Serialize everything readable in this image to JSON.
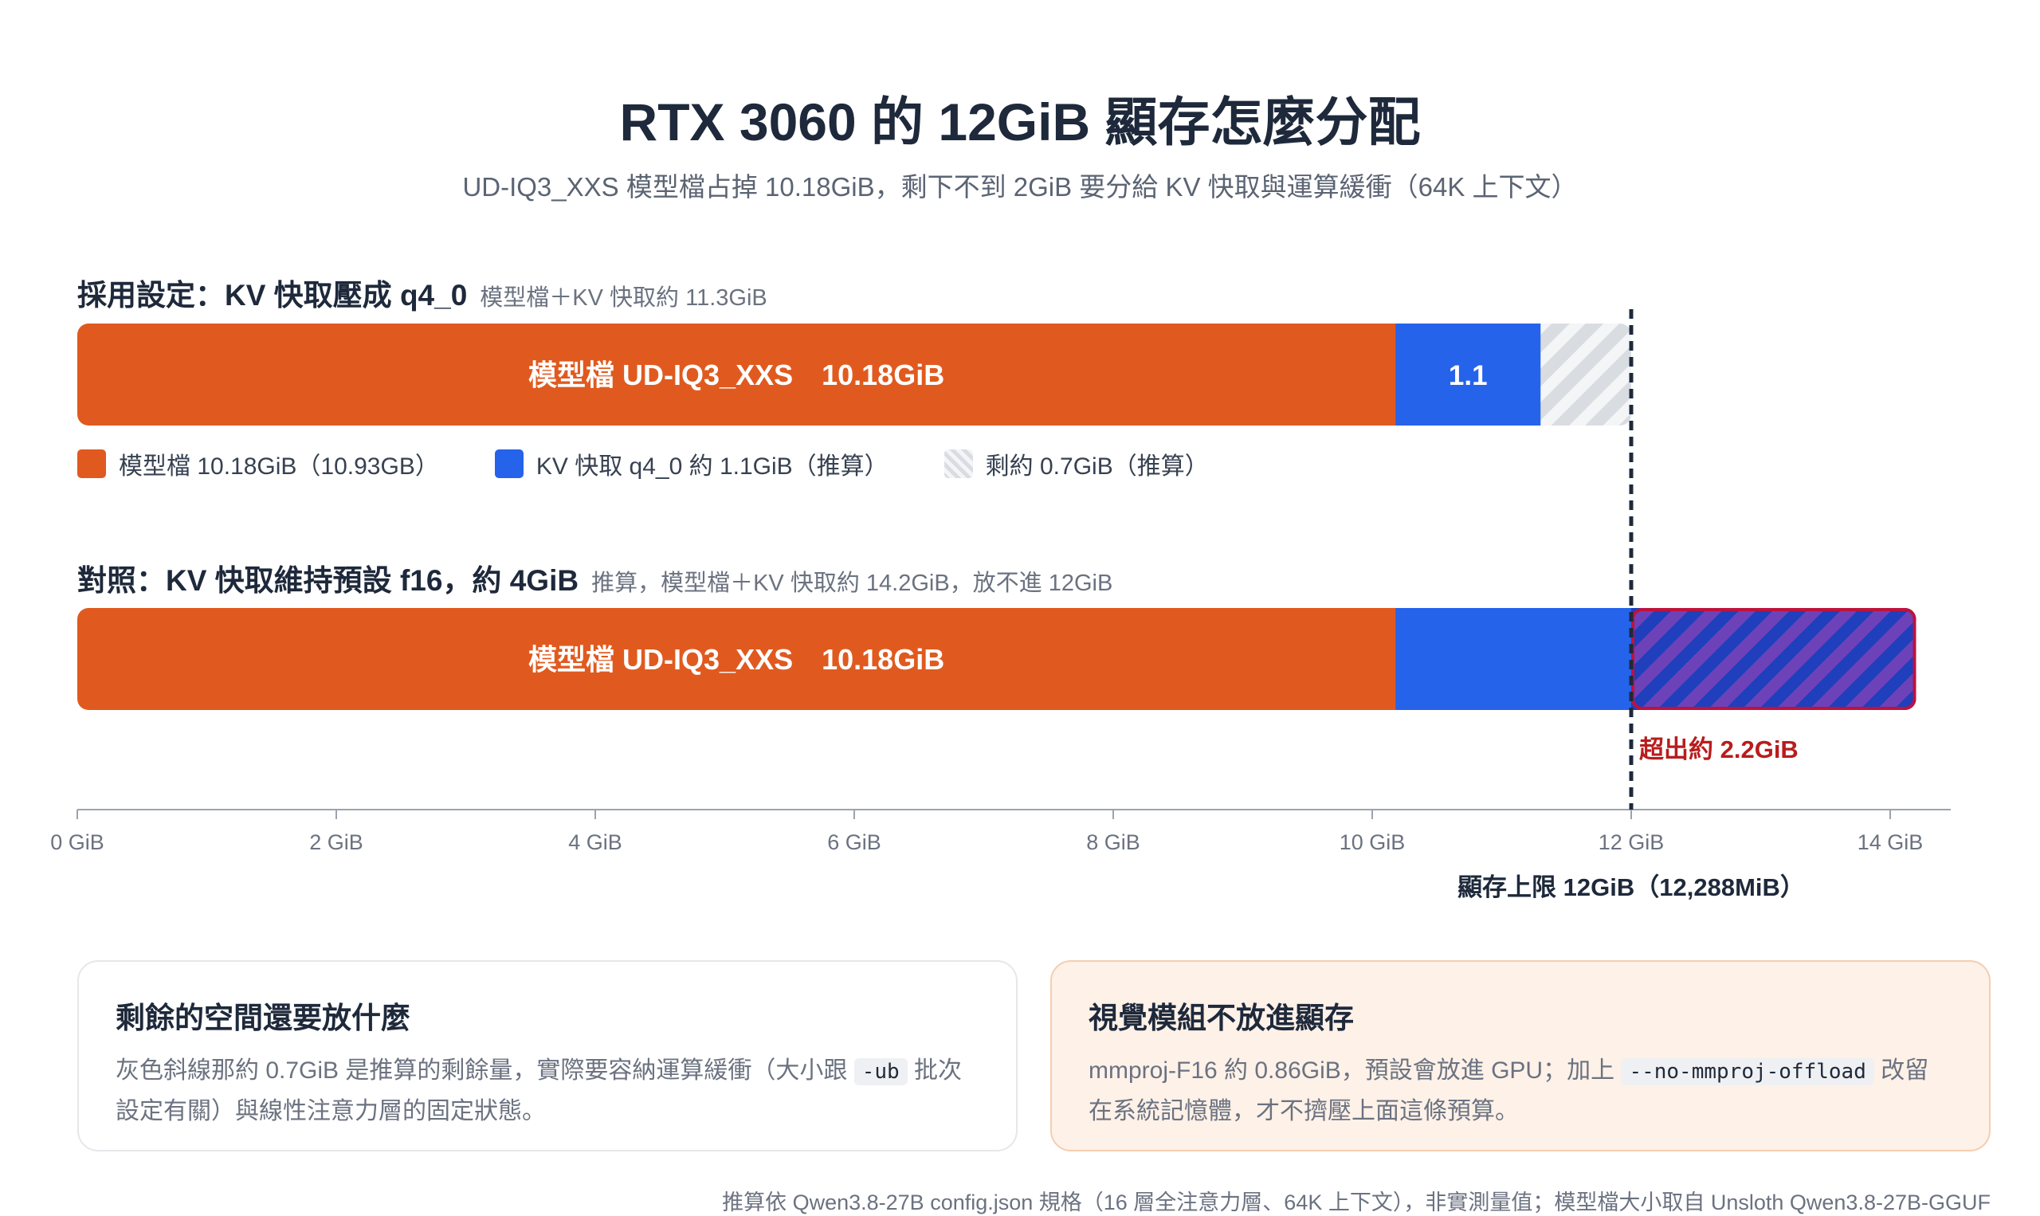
{
  "title": "RTX 3060 的 12GiB 顯存怎麼分配",
  "subtitle": "UD-IQ3_XXS 模型檔占掉 10.18GiB，剩下不到 2GiB 要分給 KV 快取與運算緩衝（64K 上下文）",
  "colors": {
    "model": "#e05a1f",
    "kv": "#2563eb",
    "remaining_base": "#d9dde2",
    "remaining_stripe": "#f4f5f7",
    "overflow_base": "#6d42b8",
    "overflow_stripe": "#1f3fbd",
    "overflow_border": "#be123c",
    "limit_line": "#1e293b",
    "axis": "#9ca3af"
  },
  "sections": {
    "adopted": {
      "heading": "採用設定：KV 快取壓成 q4_0",
      "note": "模型檔＋KV 快取約 11.3GiB"
    },
    "compare": {
      "heading": "對照：KV 快取維持預設 f16，約 4GiB",
      "note": "推算，模型檔＋KV 快取約 14.2GiB，放不進 12GiB"
    }
  },
  "legend": [
    {
      "label": "模型檔 10.18GiB（10.93GB）",
      "swatch": "model"
    },
    {
      "label": "KV 快取 q4_0 約 1.1GiB（推算）",
      "swatch": "kv"
    },
    {
      "label": "剩約 0.7GiB（推算）",
      "swatch": "remaining"
    }
  ],
  "chart_data": {
    "type": "bar",
    "orientation": "horizontal",
    "stacked": true,
    "unit": "GiB",
    "xlim": [
      0,
      14.5
    ],
    "ticks": [
      0,
      2,
      4,
      6,
      8,
      10,
      12,
      14
    ],
    "tick_labels": [
      "0 GiB",
      "2 GiB",
      "4 GiB",
      "6 GiB",
      "8 GiB",
      "10 GiB",
      "12 GiB",
      "14 GiB"
    ],
    "bars": [
      {
        "segments": [
          {
            "kind": "model",
            "value": 10.18,
            "label": "模型檔 UD-IQ3_XXS　10.18GiB"
          },
          {
            "kind": "kv",
            "value": 1.12,
            "label": "1.1"
          },
          {
            "kind": "remaining",
            "value": 0.7,
            "label": ""
          }
        ]
      },
      {
        "segments": [
          {
            "kind": "model",
            "value": 10.18,
            "label": "模型檔 UD-IQ3_XXS　10.18GiB"
          },
          {
            "kind": "kv",
            "value": 1.82,
            "label": ""
          },
          {
            "kind": "overflow",
            "value": 2.2,
            "label": ""
          }
        ]
      }
    ],
    "limit": {
      "value": 12,
      "label": "顯存上限 12GiB（12,288MiB）"
    },
    "overflow_note": "超出約 2.2GiB"
  },
  "cards": {
    "left": {
      "title": "剩餘的空間還要放什麼",
      "body_1": "灰色斜線那約 0.7GiB 是推算的剩餘量，實際要容納運算緩衝（大小跟 ",
      "code": "-ub",
      "body_2": " 批次設定有關）與線性注意力層的固定狀態。"
    },
    "right": {
      "title": "視覺模組不放進顯存",
      "body_1": "mmproj-F16 約 0.86GiB，預設會放進 GPU；加上 ",
      "code": "--no-mmproj-offload",
      "body_2": " 改留在系統記憶體，才不擠壓上面這條預算。"
    }
  },
  "footnote": "推算依 Qwen3.8-27B config.json 規格（16 層全注意力層、64K 上下文），非實測量值；模型檔大小取自 Unsloth Qwen3.8-27B-GGUF"
}
